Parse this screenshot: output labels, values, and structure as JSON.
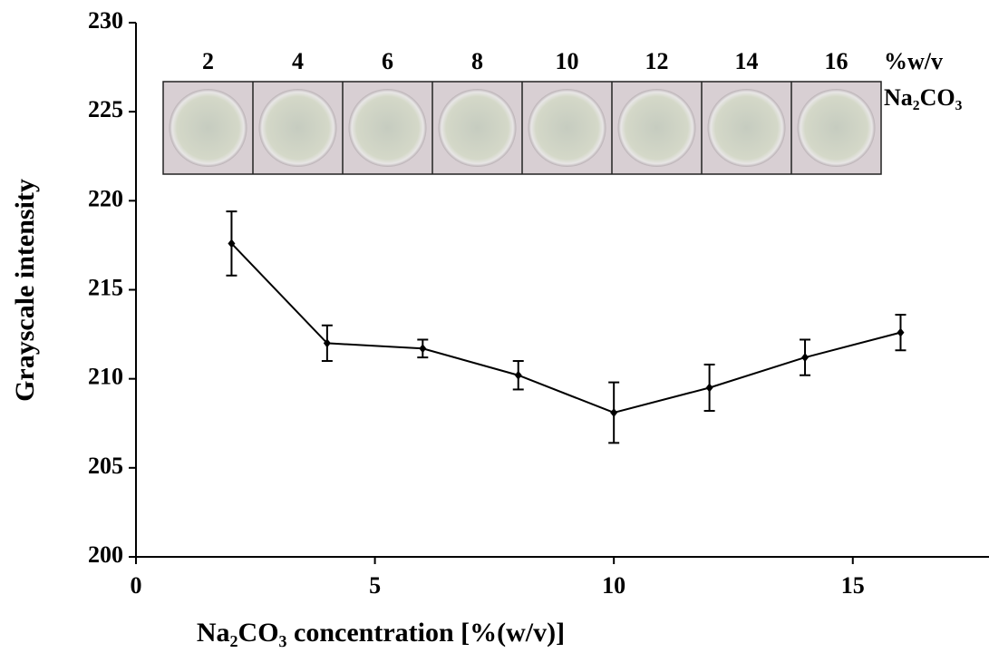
{
  "chart_data": {
    "type": "line",
    "x_label": "Na₂CO₃ concentration [%(w/v)]",
    "y_label": "Grayscale intensity",
    "xlim": [
      0,
      17.85
    ],
    "xticks": [
      0,
      5,
      10,
      15
    ],
    "ylim": [
      200,
      230
    ],
    "yticks": [
      200,
      205,
      210,
      215,
      220,
      225,
      230
    ],
    "x": [
      2,
      4,
      6,
      8,
      10,
      12,
      14,
      16
    ],
    "series": [
      {
        "color": "#000000",
        "values": [
          217.6,
          212.0,
          211.7,
          210.2,
          208.1,
          209.5,
          211.2,
          212.6
        ],
        "errors": [
          1.8,
          1.0,
          0.5,
          0.8,
          1.7,
          1.3,
          1.0,
          1.0
        ]
      }
    ],
    "inset": {
      "labels": [
        "2",
        "4",
        "6",
        "8",
        "10",
        "12",
        "14",
        "16"
      ],
      "unit": "%w/v",
      "compound": "Na₂CO₃"
    }
  }
}
